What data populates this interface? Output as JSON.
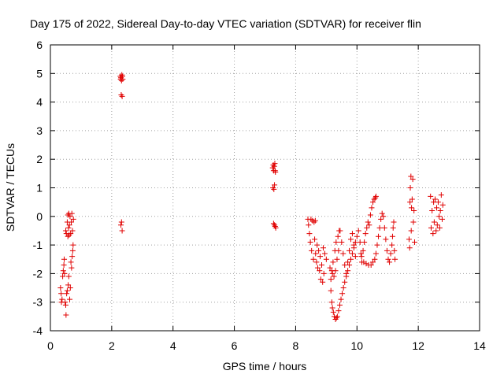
{
  "chart_data": {
    "type": "scatter",
    "title": "Day 175 of 2022, Sidereal Day-to-day VTEC variation (SDTVAR) for receiver flin",
    "xlabel": "GPS time / hours",
    "ylabel": "SDTVAR / TECUs",
    "xlim": [
      0,
      14
    ],
    "ylim": [
      -4,
      6
    ],
    "xticks": [
      0,
      2,
      4,
      6,
      8,
      10,
      12,
      14
    ],
    "xtick_labels": [
      "0",
      "2",
      "4",
      "6",
      "8",
      "10",
      "12",
      "14"
    ],
    "yticks": [
      -4,
      -3,
      -2,
      -1,
      0,
      1,
      2,
      3,
      4,
      5,
      6
    ],
    "ytick_labels": [
      "-4",
      "-3",
      "-2",
      "-1",
      "0",
      "1",
      "2",
      "3",
      "4",
      "5",
      "6"
    ],
    "grid": true,
    "marker": "+",
    "color": "#e00000",
    "series": [
      {
        "name": "SDTVAR",
        "points": [
          [
            0.33,
            -2.5
          ],
          [
            0.35,
            -2.7
          ],
          [
            0.36,
            -3.0
          ],
          [
            0.38,
            -2.9
          ],
          [
            0.4,
            -2.1
          ],
          [
            0.42,
            -1.9
          ],
          [
            0.44,
            -1.7
          ],
          [
            0.45,
            -1.5
          ],
          [
            0.46,
            -2.0
          ],
          [
            0.48,
            -3.0
          ],
          [
            0.5,
            -3.1
          ],
          [
            0.5,
            -0.5
          ],
          [
            0.51,
            -3.45
          ],
          [
            0.52,
            -0.6
          ],
          [
            0.53,
            -2.7
          ],
          [
            0.55,
            -2.6
          ],
          [
            0.55,
            -0.2
          ],
          [
            0.57,
            -0.7
          ],
          [
            0.57,
            0.05
          ],
          [
            0.58,
            -2.4
          ],
          [
            0.59,
            -0.4
          ],
          [
            0.6,
            -2.1
          ],
          [
            0.6,
            0.1
          ],
          [
            0.61,
            -0.65
          ],
          [
            0.62,
            -0.3
          ],
          [
            0.63,
            -2.9
          ],
          [
            0.64,
            0.0
          ],
          [
            0.65,
            -2.5
          ],
          [
            0.66,
            -0.6
          ],
          [
            0.67,
            -1.6
          ],
          [
            0.68,
            -0.2
          ],
          [
            0.69,
            -1.8
          ],
          [
            0.7,
            0.1
          ],
          [
            0.71,
            -1.4
          ],
          [
            0.72,
            -0.5
          ],
          [
            0.73,
            -1.2
          ],
          [
            0.74,
            -1.0
          ],
          [
            0.75,
            -0.1
          ],
          [
            2.28,
            4.9
          ],
          [
            2.29,
            4.8
          ],
          [
            2.3,
            4.85
          ],
          [
            2.31,
            4.25
          ],
          [
            2.32,
            4.75
          ],
          [
            2.33,
            4.95
          ],
          [
            2.34,
            4.2
          ],
          [
            2.35,
            4.9
          ],
          [
            2.36,
            4.8
          ],
          [
            2.3,
            -0.3
          ],
          [
            2.32,
            -0.2
          ],
          [
            2.34,
            -0.5
          ],
          [
            7.25,
            1.7
          ],
          [
            7.26,
            1.0
          ],
          [
            7.27,
            1.8
          ],
          [
            7.28,
            1.6
          ],
          [
            7.29,
            0.95
          ],
          [
            7.3,
            1.75
          ],
          [
            7.31,
            1.1
          ],
          [
            7.32,
            1.85
          ],
          [
            7.33,
            1.6
          ],
          [
            7.34,
            1.55
          ],
          [
            7.28,
            -0.25
          ],
          [
            7.31,
            -0.3
          ],
          [
            7.33,
            -0.35
          ],
          [
            7.35,
            -0.4
          ],
          [
            8.4,
            -0.1
          ],
          [
            8.42,
            -0.3
          ],
          [
            8.45,
            -0.6
          ],
          [
            8.48,
            -0.9
          ],
          [
            8.5,
            -0.1
          ],
          [
            8.52,
            -1.2
          ],
          [
            8.55,
            -0.15
          ],
          [
            8.58,
            -1.5
          ],
          [
            8.6,
            -0.2
          ],
          [
            8.62,
            -0.8
          ],
          [
            8.64,
            -0.15
          ],
          [
            8.65,
            -1.3
          ],
          [
            8.68,
            -1.6
          ],
          [
            8.7,
            -1.0
          ],
          [
            8.72,
            -1.8
          ],
          [
            8.75,
            -1.2
          ],
          [
            8.78,
            -1.9
          ],
          [
            8.8,
            -1.4
          ],
          [
            8.82,
            -2.2
          ],
          [
            8.85,
            -1.7
          ],
          [
            8.88,
            -2.3
          ],
          [
            8.9,
            -1.1
          ],
          [
            8.92,
            -2.0
          ],
          [
            8.95,
            -1.3
          ],
          [
            9.0,
            -1.5
          ],
          [
            9.12,
            -1.8
          ],
          [
            9.15,
            -2.2
          ],
          [
            9.18,
            -1.9
          ],
          [
            9.2,
            -2.0
          ],
          [
            9.22,
            -1.6
          ],
          [
            9.25,
            -2.1
          ],
          [
            9.28,
            -1.2
          ],
          [
            9.3,
            -1.9
          ],
          [
            9.32,
            -0.9
          ],
          [
            9.35,
            -1.5
          ],
          [
            9.38,
            -0.7
          ],
          [
            9.4,
            -1.2
          ],
          [
            9.42,
            -0.5
          ],
          [
            9.15,
            -2.6
          ],
          [
            9.18,
            -3.0
          ],
          [
            9.2,
            -3.2
          ],
          [
            9.23,
            -3.35
          ],
          [
            9.26,
            -3.5
          ],
          [
            9.3,
            -3.6
          ],
          [
            9.33,
            -3.55
          ],
          [
            9.36,
            -3.5
          ],
          [
            9.4,
            -3.3
          ],
          [
            9.44,
            -3.1
          ],
          [
            9.48,
            -2.9
          ],
          [
            9.52,
            -2.7
          ],
          [
            9.56,
            -2.5
          ],
          [
            9.6,
            -2.3
          ],
          [
            9.65,
            -2.1
          ],
          [
            9.7,
            -1.9
          ],
          [
            9.75,
            -1.7
          ],
          [
            9.8,
            -1.5
          ],
          [
            9.85,
            -1.3
          ],
          [
            9.9,
            -1.1
          ],
          [
            9.95,
            -0.9
          ],
          [
            10.0,
            -0.7
          ],
          [
            10.05,
            -0.5
          ],
          [
            9.45,
            -0.5
          ],
          [
            9.5,
            -0.9
          ],
          [
            9.55,
            -1.3
          ],
          [
            9.6,
            -1.7
          ],
          [
            9.65,
            -2.0
          ],
          [
            9.7,
            -1.6
          ],
          [
            9.75,
            -1.2
          ],
          [
            9.8,
            -0.8
          ],
          [
            9.85,
            -0.6
          ],
          [
            9.9,
            -1.0
          ],
          [
            9.95,
            -1.4
          ],
          [
            10.1,
            -0.9
          ],
          [
            10.13,
            -1.3
          ],
          [
            10.16,
            -1.6
          ],
          [
            10.2,
            -1.2
          ],
          [
            10.24,
            -0.9
          ],
          [
            10.28,
            -0.6
          ],
          [
            10.32,
            -0.4
          ],
          [
            10.36,
            -0.2
          ],
          [
            10.4,
            -0.3
          ],
          [
            10.44,
            0.05
          ],
          [
            10.48,
            0.3
          ],
          [
            10.52,
            0.5
          ],
          [
            10.56,
            0.6
          ],
          [
            10.6,
            0.65
          ],
          [
            10.62,
            0.7
          ],
          [
            10.15,
            -1.4
          ],
          [
            10.22,
            -1.6
          ],
          [
            10.3,
            -1.65
          ],
          [
            10.38,
            -1.7
          ],
          [
            10.46,
            -1.7
          ],
          [
            10.52,
            -1.6
          ],
          [
            10.58,
            -1.5
          ],
          [
            10.62,
            -1.3
          ],
          [
            10.66,
            -1.0
          ],
          [
            10.7,
            -0.7
          ],
          [
            10.74,
            -0.4
          ],
          [
            10.78,
            -0.1
          ],
          [
            10.82,
            0.1
          ],
          [
            10.86,
            0.0
          ],
          [
            10.9,
            -0.4
          ],
          [
            10.94,
            -0.8
          ],
          [
            10.98,
            -1.2
          ],
          [
            11.02,
            -1.5
          ],
          [
            11.06,
            -1.6
          ],
          [
            11.1,
            -1.3
          ],
          [
            11.14,
            -1.0
          ],
          [
            11.16,
            -0.7
          ],
          [
            11.18,
            -0.4
          ],
          [
            11.2,
            -0.2
          ],
          [
            11.22,
            -1.2
          ],
          [
            11.24,
            -1.5
          ],
          [
            11.7,
            -0.8
          ],
          [
            11.72,
            -1.1
          ],
          [
            11.73,
            0.5
          ],
          [
            11.74,
            1.0
          ],
          [
            11.76,
            1.4
          ],
          [
            11.77,
            -0.5
          ],
          [
            11.78,
            0.3
          ],
          [
            11.8,
            0.6
          ],
          [
            11.82,
            1.3
          ],
          [
            11.84,
            -0.2
          ],
          [
            11.86,
            0.2
          ],
          [
            11.88,
            -0.9
          ],
          [
            12.4,
            0.7
          ],
          [
            12.42,
            -0.4
          ],
          [
            12.45,
            0.2
          ],
          [
            12.48,
            -0.6
          ],
          [
            12.5,
            0.5
          ],
          [
            12.52,
            -0.2
          ],
          [
            12.55,
            0.6
          ],
          [
            12.58,
            -0.5
          ],
          [
            12.6,
            0.3
          ],
          [
            12.62,
            -0.3
          ],
          [
            12.65,
            0.5
          ],
          [
            12.68,
            0.0
          ],
          [
            12.7,
            -0.4
          ],
          [
            12.72,
            0.2
          ],
          [
            12.75,
            0.75
          ],
          [
            12.78,
            -0.1
          ],
          [
            12.8,
            0.4
          ]
        ]
      }
    ]
  }
}
